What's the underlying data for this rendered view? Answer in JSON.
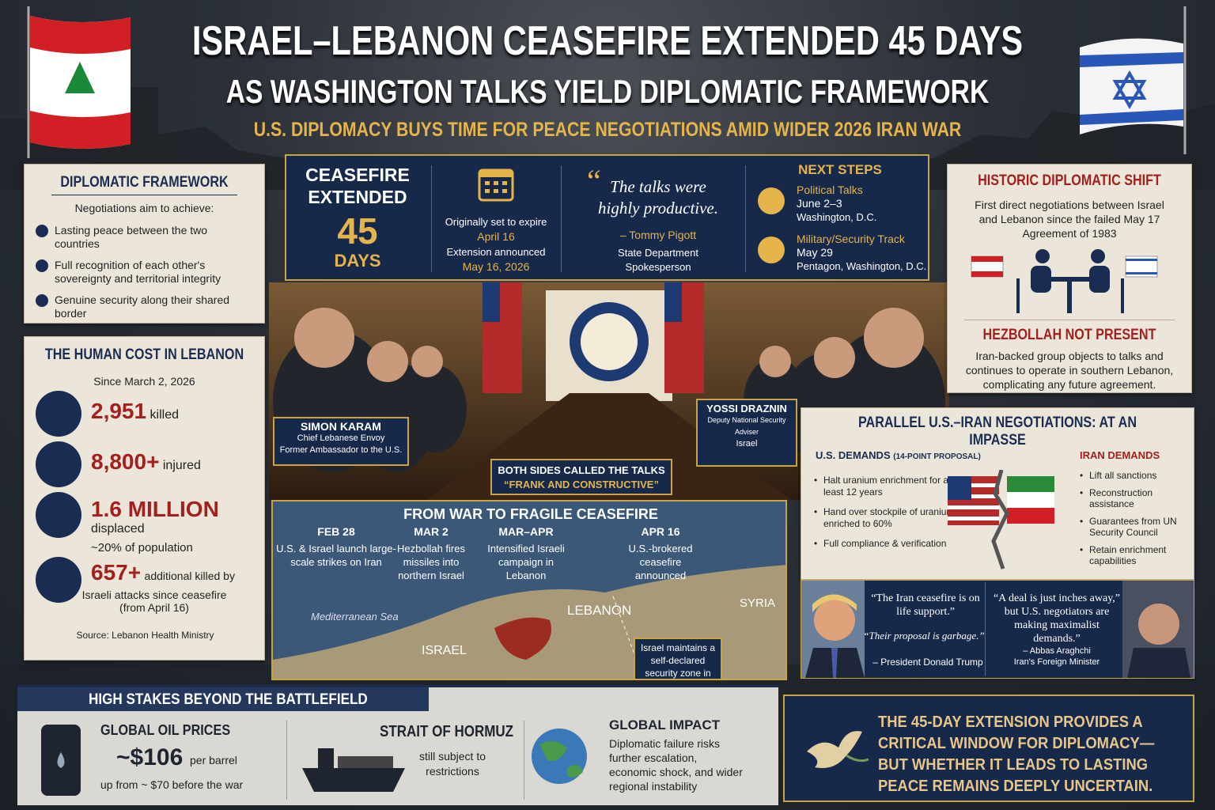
{
  "header": {
    "title_line1": "ISRAEL–LEBANON CEASEFIRE EXTENDED 45 DAYS",
    "title_line2": "AS WASHINGTON TALKS YIELD DIPLOMATIC FRAMEWORK",
    "subtitle": "U.S. DIPLOMACY BUYS TIME FOR PEACE NEGOTIATIONS AMID WIDER 2026 IRAN WAR"
  },
  "diplomatic_framework": {
    "title": "DIPLOMATIC FRAMEWORK",
    "intro": "Negotiations aim to achieve:",
    "items": [
      "Lasting peace between the two countries",
      "Full recognition of each other's sovereignty and territorial integrity",
      "Genuine security along their shared border"
    ]
  },
  "human_cost": {
    "title": "THE HUMAN COST IN LEBANON",
    "since": "Since March 2, 2026",
    "stats": [
      {
        "value": "2,951",
        "label": "killed"
      },
      {
        "value": "8,800+",
        "label": "injured"
      },
      {
        "value": "1.6 MILLION",
        "label": "displaced",
        "note": "~20% of population"
      },
      {
        "value": "657+",
        "label": "additional killed by",
        "note": "Israeli attacks since ceasefire (from April 16)"
      }
    ],
    "source": "Source: Lebanon Health Ministry"
  },
  "ceasefire_box": {
    "label": "CEASEFIRE EXTENDED",
    "number": "45",
    "unit": "DAYS",
    "original_label": "Originally set to expire",
    "original_date": "April 16",
    "announced_label": "Extension announced",
    "announced_date": "May 16, 2026",
    "quote": "The talks were highly productive.",
    "quote_author": "– Tommy Pigott",
    "quote_role": "State Department Spokesperson",
    "next_steps_title": "NEXT STEPS",
    "next_steps": [
      {
        "title": "Political Talks",
        "date": "June 2–3",
        "place": "Washington, D.C."
      },
      {
        "title": "Military/Security Track",
        "date": "May 29",
        "place": "Pentagon, Washington, D.C."
      }
    ]
  },
  "photo": {
    "left_name": "SIMON KARAM",
    "left_role1": "Chief Lebanese Envoy",
    "left_role2": "Former Ambassador to the U.S.",
    "right_name": "YOSSI DRAZNIN",
    "right_role1": "Deputy National Security Adviser",
    "right_role2": "Israel",
    "caption_line1": "BOTH SIDES CALLED THE TALKS",
    "caption_line2": "“FRANK AND CONSTRUCTIVE”"
  },
  "timeline": {
    "title": "FROM WAR TO FRAGILE CEASEFIRE",
    "events": [
      {
        "date": "FEB 28",
        "text": "U.S. & Israel launch large-scale strikes on Iran"
      },
      {
        "date": "MAR 2",
        "text": "Hezbollah fires missiles into northern Israel"
      },
      {
        "date": "MAR–APR",
        "text": "Intensified Israeli campaign in Lebanon"
      },
      {
        "date": "APR 16",
        "text": "U.S.-brokered ceasefire announced"
      }
    ],
    "map_sea": "Mediterranean Sea",
    "map_lebanon": "LEBANON",
    "map_syria": "SYRIA",
    "map_israel": "ISRAEL",
    "map_note": "Israel maintains a self-declared security zone in southern Lebanon"
  },
  "historic_shift": {
    "title": "HISTORIC DIPLOMATIC SHIFT",
    "text": "First direct negotiations between Israel and Lebanon since the failed May 17 Agreement of 1983",
    "hezbollah_title": "HEZBOLLAH NOT PRESENT",
    "hezbollah_text": "Iran-backed group objects to talks and continues to operate in southern Lebanon, complicating any future agreement."
  },
  "iran_talks": {
    "title": "PARALLEL U.S.–IRAN NEGOTIATIONS: AT AN IMPASSE",
    "us_title": "U.S. DEMANDS",
    "us_note": "(14-POINT PROPOSAL)",
    "us_demands": [
      "Halt uranium enrichment for at least 12 years",
      "Hand over stockpile of uranium enriched to 60%",
      "Full compliance & verification"
    ],
    "iran_title": "IRAN DEMANDS",
    "iran_demands": [
      "Lift all sanctions",
      "Reconstruction assistance",
      "Guarantees from UN Security Council",
      "Retain enrichment capabilities"
    ],
    "trump_quote1": "“The Iran ceasefire is on life support.”",
    "trump_quote2": "“Their proposal is garbage.”",
    "trump_attr": "– President Donald Trump",
    "araghchi_quote": "“A deal is just inches away,” but U.S. negotiators are making maximalist demands.”",
    "araghchi_name": "– Abbas Araghchi",
    "araghchi_role": "Iran's Foreign Minister"
  },
  "high_stakes": {
    "title": "HIGH STAKES BEYOND THE BATTLEFIELD",
    "oil_title": "GLOBAL OIL PRICES",
    "oil_value": "~$106",
    "oil_unit": "per barrel",
    "oil_note": "up from ~ $70 before the war",
    "hormuz_title": "STRAIT OF HORMUZ",
    "hormuz_text": "still subject to restrictions",
    "impact_title": "GLOBAL IMPACT",
    "impact_text": "Diplomatic failure risks further escalation, economic shock, and wider regional instability"
  },
  "conclusion": {
    "text": "THE 45-DAY EXTENSION PROVIDES A CRITICAL WINDOW FOR DIPLOMACY— BUT WHETHER IT LEADS TO LASTING PEACE REMAINS DEEPLY UNCERTAIN."
  }
}
